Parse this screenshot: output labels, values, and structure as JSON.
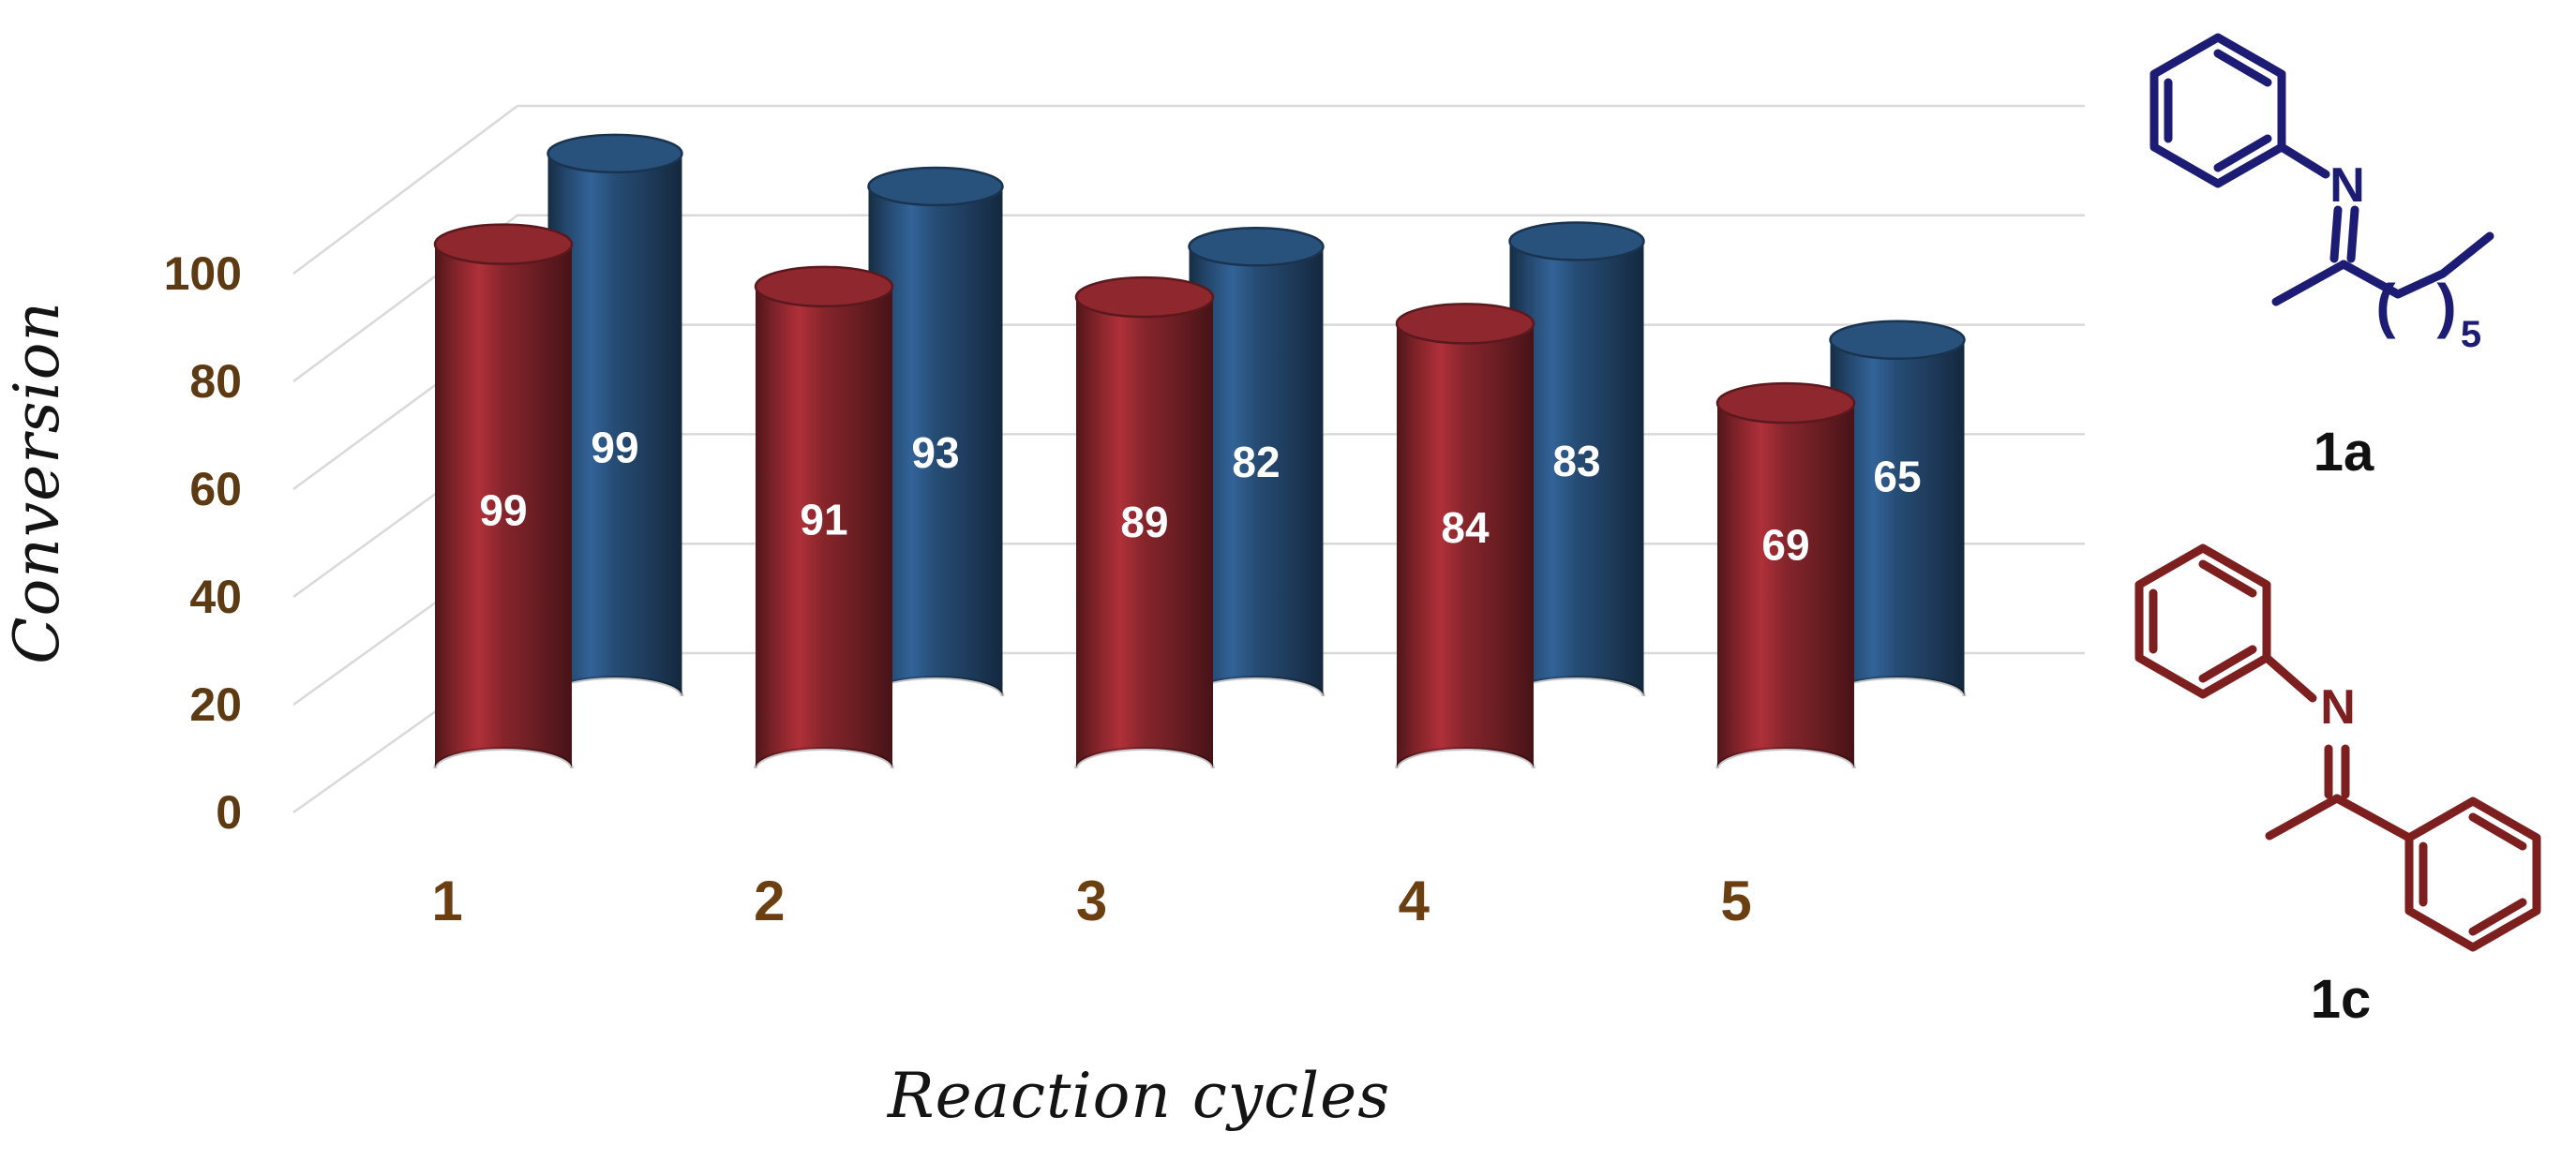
{
  "chart_data": {
    "type": "bar",
    "subtype": "3d-cylinder",
    "title": "",
    "categories": [
      "1",
      "2",
      "3",
      "4",
      "5"
    ],
    "series": [
      {
        "name": "1c",
        "row": "front",
        "color": "#7f2329",
        "values": [
          99,
          91,
          89,
          84,
          69
        ]
      },
      {
        "name": "1a",
        "row": "back",
        "color": "#24486e",
        "values": [
          99,
          93,
          82,
          83,
          65
        ]
      }
    ],
    "xlabel": "Reaction cycles",
    "ylabel": "Conversion",
    "ylim": [
      0,
      100
    ],
    "yticks": [
      0,
      20,
      40,
      60,
      80,
      100
    ],
    "grid": true,
    "legend_position": "none",
    "data_labels": true,
    "data_label_color": "#ffffff",
    "tick_label_color": "#5d3a12",
    "category_label_color": "#6b3f10",
    "grid_color": "#d9d9d9",
    "background": "#ffffff"
  },
  "molecules": [
    {
      "label": "1a",
      "color": "#1c1c75",
      "atom_label": "N",
      "repeat_open": "(",
      "repeat_close": ")",
      "repeat_subscript": "5",
      "label_color": "#111111"
    },
    {
      "label": "1c",
      "color": "#7d1f1f",
      "atom_label": "N",
      "label_color": "#111111"
    }
  ]
}
